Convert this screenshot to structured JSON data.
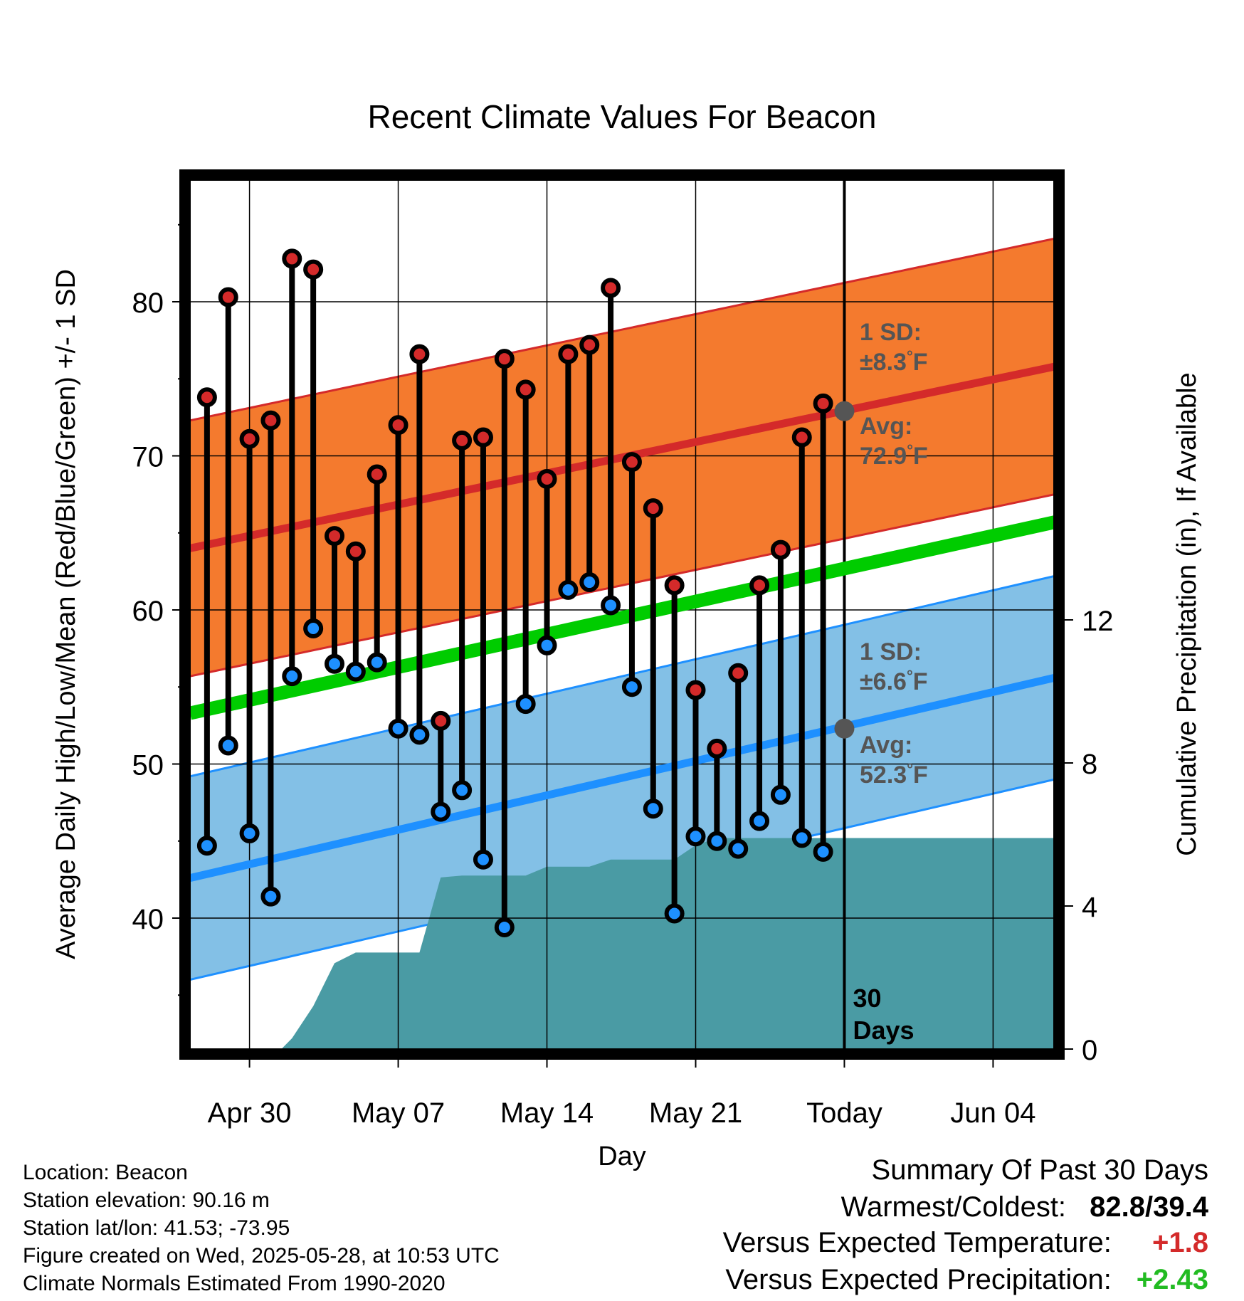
{
  "chart_data": {
    "type": "line",
    "title": "Recent Climate Values For Beacon",
    "xlabel": "Day",
    "ylabel": "Average Daily High/Low/Mean (Red/Blue/Green) +/- 1 SD",
    "y2label": "Cumulative Precipitation (in), If Available",
    "x_tick_labels": [
      "Apr 30",
      "May 07",
      "May 14",
      "May 21",
      "Today",
      "Jun 04"
    ],
    "y_ticks": [
      40,
      50,
      60,
      70,
      80
    ],
    "y2_ticks": [
      0,
      4,
      8,
      12
    ],
    "ylim": [
      31.5,
      87.9
    ],
    "y2lim": [
      0,
      24.3
    ],
    "today_label": "30\nDays",
    "days": [
      -30,
      -29,
      -28,
      -27,
      -26,
      -25,
      -24,
      -23,
      -22,
      -21,
      -20,
      -19,
      -18,
      -17,
      -16,
      -15,
      -14,
      -13,
      -12,
      -11,
      -10,
      -9,
      -8,
      -7,
      -6,
      -5,
      -4,
      -3,
      -2,
      -1
    ],
    "series": [
      {
        "name": "High",
        "color": "#d42a2a",
        "values": [
          73.8,
          80.3,
          71.1,
          72.3,
          82.8,
          82.1,
          64.8,
          63.8,
          68.8,
          72.0,
          76.6,
          52.8,
          71.0,
          71.2,
          76.3,
          74.3,
          68.5,
          76.6,
          77.2,
          80.9,
          69.6,
          66.6,
          61.6,
          54.8,
          51.0,
          55.9,
          61.6,
          63.9,
          71.2,
          73.4
        ]
      },
      {
        "name": "Low",
        "color": "#1e90ff",
        "values": [
          44.7,
          51.2,
          45.5,
          41.4,
          55.7,
          58.8,
          56.5,
          56.0,
          56.6,
          52.3,
          51.9,
          46.9,
          48.3,
          43.8,
          39.4,
          53.9,
          57.7,
          61.3,
          61.8,
          60.3,
          55.0,
          47.1,
          40.3,
          45.3,
          45.0,
          44.5,
          46.3,
          48.0,
          45.2,
          44.3
        ]
      }
    ],
    "normal_high": {
      "start": 64.0,
      "end": 75.8,
      "sd": 8.3,
      "color": "#d42a2a",
      "band_color": "#f47a2e"
    },
    "normal_low": {
      "start": 42.6,
      "end": 55.6,
      "sd": 6.6,
      "color": "#1e90ff",
      "band_color": "#83c0e6"
    },
    "normal_mean": {
      "start": 53.3,
      "end": 65.7,
      "color": "#00cc00"
    },
    "precipitation": {
      "color": "#4a9ba4",
      "x": [
        -26.5,
        -26,
        -25,
        -24,
        -23,
        -22,
        -21,
        -20,
        -19,
        -18,
        -17,
        -16,
        -15,
        -14,
        -13,
        -12,
        -11,
        -10,
        -9,
        -8,
        -7,
        -6,
        -5,
        -4,
        -3,
        -2,
        -1,
        0,
        9.9
      ],
      "values": [
        0,
        0.3,
        1.2,
        2.4,
        2.7,
        2.7,
        2.7,
        2.7,
        4.8,
        4.85,
        4.85,
        4.85,
        4.85,
        5.1,
        5.1,
        5.1,
        5.3,
        5.3,
        5.3,
        5.3,
        5.7,
        5.9,
        5.9,
        5.9,
        5.9,
        5.9,
        5.9,
        5.9,
        5.9
      ]
    },
    "annotations": {
      "high_sd": {
        "line1": "1 SD:",
        "line2": "±8.3",
        "unit": "°F"
      },
      "high_avg": {
        "line1": "Avg:",
        "line2": "72.9",
        "unit": "°F",
        "value": 72.9
      },
      "low_sd": {
        "line1": "1 SD:",
        "line2": "±6.6",
        "unit": "°F"
      },
      "low_avg": {
        "line1": "Avg:",
        "line2": "52.3",
        "unit": "°F",
        "value": 52.3
      }
    }
  },
  "info": {
    "location": "Location: Beacon",
    "elevation": "Station elevation: 90.16 m",
    "latlon": "Station lat/lon: 41.53; -73.95",
    "created": "Figure created on Wed, 2025-05-28, at 10:53 UTC",
    "normals": "Climate Normals Estimated From 1990-2020"
  },
  "summary": {
    "title": "Summary Of Past 30 Days",
    "warmest_label": "Warmest/Coldest:",
    "warmest_value": "82.8/39.4",
    "temp_label": "Versus Expected Temperature:",
    "temp_value": "+1.8",
    "temp_color": "#d42a2a",
    "precip_label": "Versus Expected Precipitation:",
    "precip_value": "+2.43",
    "precip_color": "#22bb22"
  }
}
